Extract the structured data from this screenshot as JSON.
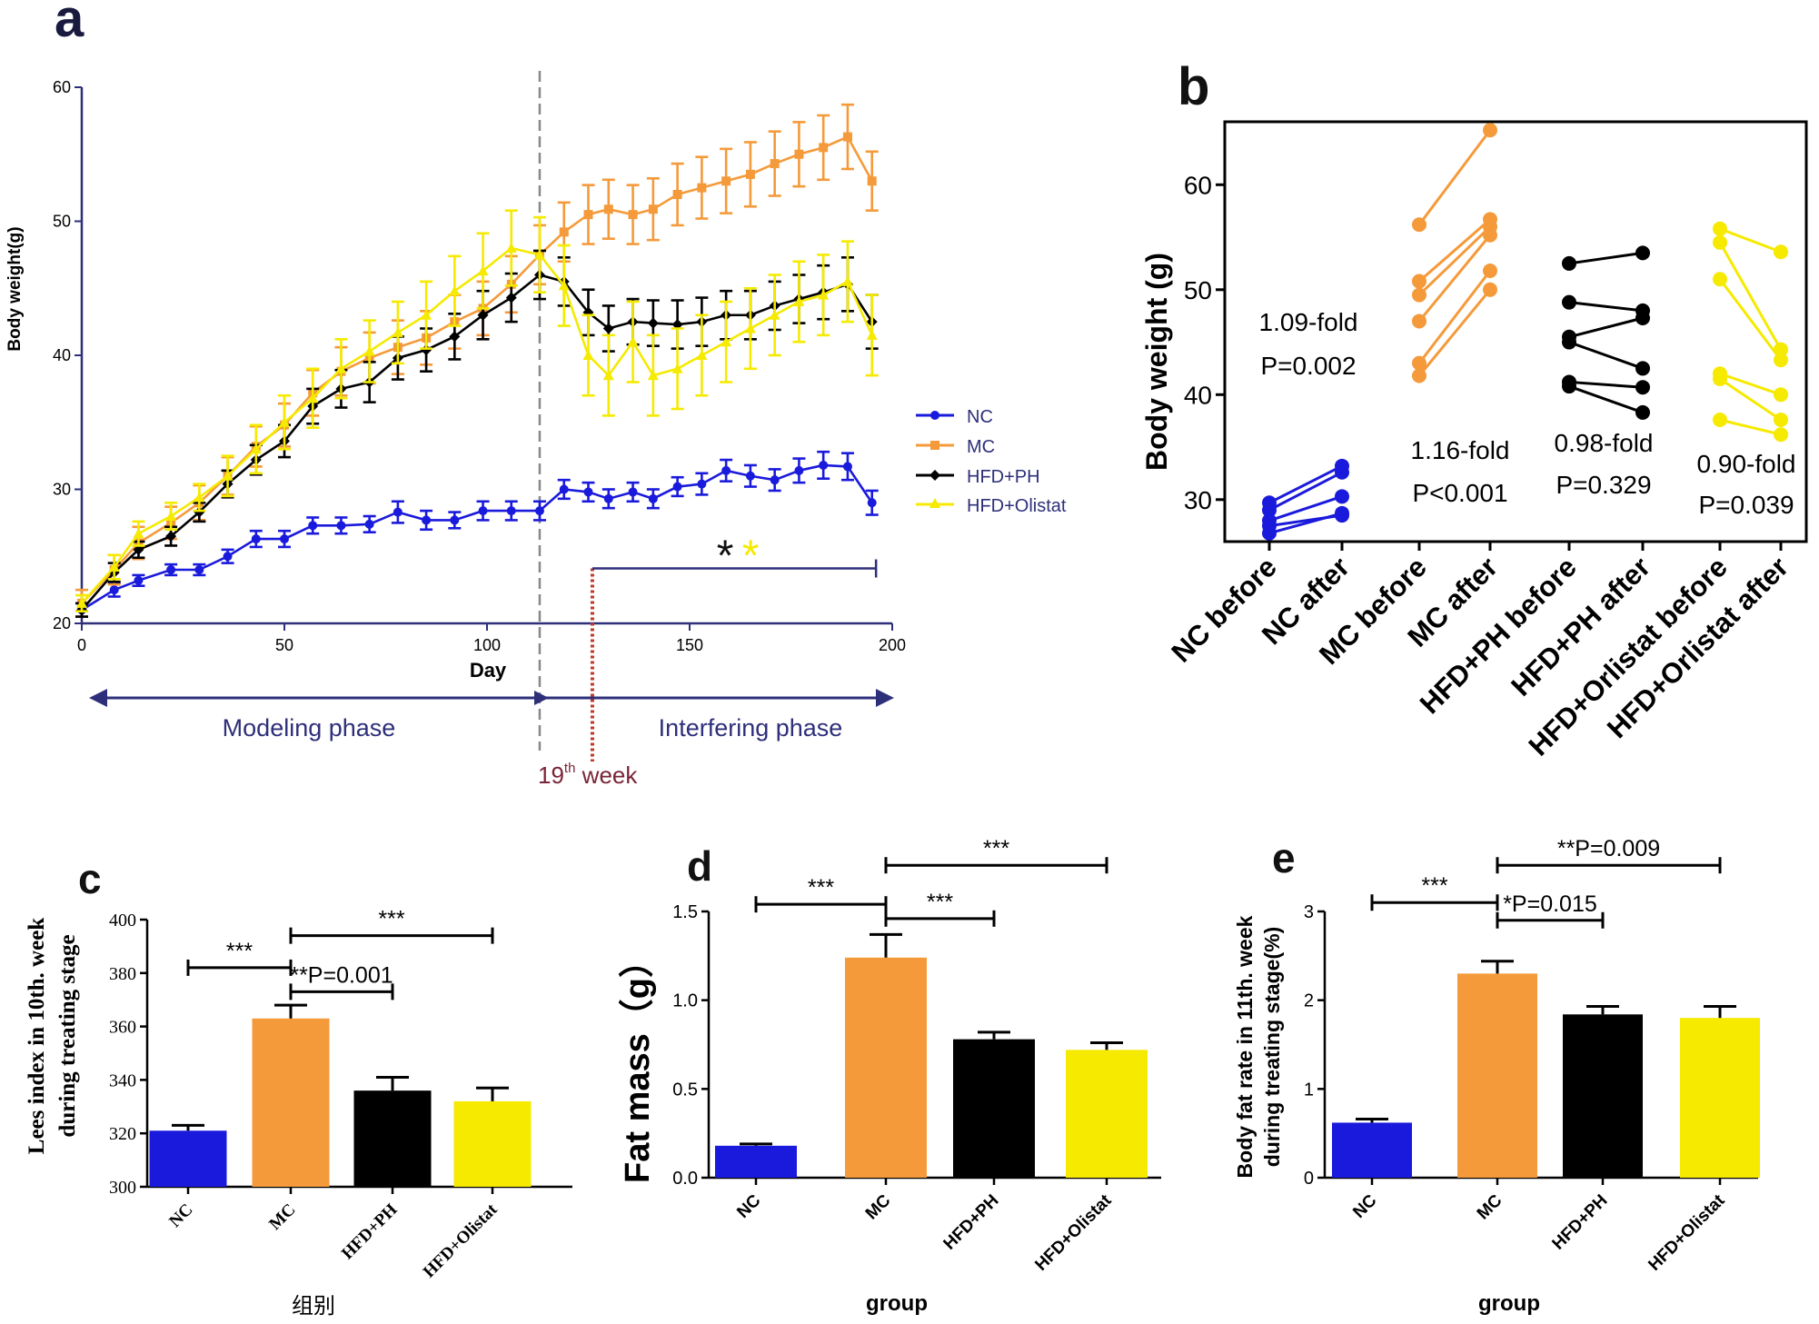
{
  "colors": {
    "NC": "#1a1adc",
    "MC": "#f59a3a",
    "PH": "#000000",
    "OL": "#f5ea00",
    "axisNavy": "#2e2f7a",
    "dashedLine": "#888888",
    "dotted": "#c0392b",
    "weekText": "#7a2438"
  },
  "chart_data": [
    {
      "panel": "a",
      "type": "line",
      "label": "a",
      "xlabel": "Day",
      "ylabel": "Body weight(g)",
      "xlim": [
        0,
        200
      ],
      "ylim": [
        20,
        60
      ],
      "xticks": [
        0,
        50,
        100,
        150,
        200
      ],
      "yticks": [
        20,
        30,
        40,
        50,
        60
      ],
      "series": [
        {
          "name": "NC",
          "color": "#1a1adc",
          "marker": "circle",
          "x": [
            0,
            8,
            14,
            22,
            29,
            36,
            43,
            50,
            57,
            64,
            71,
            78,
            85,
            92,
            99,
            106,
            113,
            119,
            125,
            130,
            136,
            141,
            147,
            153,
            159,
            165,
            171,
            177,
            183,
            189,
            195
          ],
          "y": [
            21,
            22.5,
            23.2,
            24,
            24,
            25,
            26.3,
            26.3,
            27.3,
            27.3,
            27.4,
            28.3,
            27.7,
            27.7,
            28.4,
            28.4,
            28.4,
            30,
            29.8,
            29.3,
            29.8,
            29.3,
            30.2,
            30.4,
            31.4,
            31,
            30.7,
            31.4,
            31.8,
            31.7,
            29
          ],
          "err": [
            0.5,
            0.5,
            0.4,
            0.4,
            0.4,
            0.5,
            0.6,
            0.6,
            0.6,
            0.6,
            0.6,
            0.8,
            0.7,
            0.6,
            0.7,
            0.7,
            0.7,
            0.7,
            0.7,
            0.7,
            0.7,
            0.7,
            0.7,
            0.8,
            0.8,
            0.8,
            0.8,
            0.9,
            1,
            1,
            0.9
          ]
        },
        {
          "name": "MC",
          "color": "#f59a3a",
          "marker": "square",
          "x": [
            0,
            8,
            14,
            22,
            29,
            36,
            43,
            50,
            57,
            64,
            71,
            78,
            85,
            92,
            99,
            106,
            113,
            119,
            125,
            130,
            136,
            141,
            147,
            153,
            159,
            165,
            171,
            177,
            183,
            189,
            195
          ],
          "y": [
            21.5,
            24,
            26,
            27.5,
            29,
            31,
            33.2,
            34.8,
            37.2,
            38.8,
            39.8,
            40.6,
            41.3,
            42.5,
            43.5,
            45.3,
            47.5,
            49.2,
            50.5,
            50.9,
            50.5,
            50.9,
            52,
            52.5,
            53,
            53.5,
            54.3,
            55,
            55.5,
            56.3,
            53
          ],
          "err": [
            1,
            1.1,
            1.2,
            1.2,
            1.3,
            1.4,
            1.5,
            1.6,
            1.7,
            1.8,
            1.9,
            2,
            2,
            2,
            2,
            2.1,
            2.2,
            2.2,
            2.2,
            2.2,
            2.2,
            2.3,
            2.3,
            2.3,
            2.4,
            2.4,
            2.4,
            2.4,
            2.4,
            2.4,
            2.2
          ]
        },
        {
          "name": "HFD+PH",
          "color": "#000000",
          "marker": "diamond",
          "x": [
            0,
            8,
            14,
            22,
            29,
            36,
            43,
            50,
            57,
            64,
            71,
            78,
            85,
            92,
            99,
            106,
            113,
            119,
            125,
            130,
            136,
            141,
            147,
            153,
            159,
            165,
            171,
            177,
            183,
            189,
            195
          ],
          "y": [
            21,
            23.8,
            25.5,
            26.5,
            28.3,
            30.4,
            32.2,
            33.6,
            36.2,
            37.5,
            38,
            39.8,
            40.4,
            41.4,
            43,
            44.3,
            46,
            45.5,
            43.2,
            42,
            42.5,
            42.4,
            42.3,
            42.5,
            43,
            43,
            43.7,
            44.2,
            44.7,
            45.3,
            42.5
          ],
          "err": [
            0.5,
            0.7,
            0.6,
            0.7,
            0.7,
            1,
            1.1,
            1.2,
            1.3,
            1.4,
            1.5,
            1.6,
            1.6,
            1.7,
            1.8,
            1.8,
            1.8,
            1.8,
            1.7,
            1.7,
            1.7,
            1.7,
            1.8,
            1.8,
            1.8,
            1.8,
            1.8,
            1.8,
            2,
            2,
            2
          ]
        },
        {
          "name": "HFD+Olistat",
          "color": "#f5ea00",
          "marker": "triangle",
          "x": [
            0,
            8,
            14,
            22,
            29,
            36,
            43,
            50,
            57,
            64,
            71,
            78,
            85,
            92,
            99,
            106,
            113,
            119,
            125,
            130,
            136,
            141,
            147,
            153,
            159,
            165,
            171,
            177,
            183,
            189,
            195
          ],
          "y": [
            21.5,
            24.2,
            26.7,
            28,
            29.4,
            31,
            33,
            35,
            36.8,
            39,
            40.3,
            41.7,
            43,
            44.8,
            46.3,
            48,
            47.5,
            45.2,
            40,
            38.5,
            41,
            38.5,
            39,
            40,
            41,
            42,
            43,
            44,
            44.5,
            45.5,
            41.5
          ],
          "err": [
            0.6,
            0.9,
            0.9,
            1,
            1,
            1.5,
            1.8,
            2,
            2.2,
            2.2,
            2.3,
            2.3,
            2.5,
            2.6,
            2.8,
            2.8,
            2.8,
            3,
            3,
            3,
            3,
            3,
            3,
            3,
            3,
            3,
            3,
            3,
            3,
            3,
            3
          ]
        }
      ],
      "annotations": {
        "phase_left": "Modeling phase",
        "phase_right": "Interfering phase",
        "week_prefix": "19",
        "week_sup": "th",
        "week_suffix": " week",
        "star_black": "*",
        "star_yellow": "*",
        "divider_day": 113,
        "week_day": 126,
        "sig_from_day": 126,
        "sig_to_day": 196,
        "sig_y": 24.1
      }
    },
    {
      "panel": "b",
      "type": "scatter",
      "label": "b",
      "ylabel": "Body weight (g)",
      "ylim": [
        26,
        66
      ],
      "yticks": [
        30,
        40,
        50,
        60
      ],
      "categories": [
        "NC before",
        "NC after",
        "MC before",
        "MC after",
        "HFD+PH before",
        "HFD+PH after",
        "HFD+Orlistat before",
        "HFD+Orlistat after"
      ],
      "groups": [
        {
          "name": "NC",
          "color": "#1a1adc",
          "before": [
            29.7,
            29,
            28,
            27.5,
            26.8
          ],
          "after": [
            33.2,
            32.6,
            30.3,
            28.5,
            28.7
          ],
          "fold": "1.09-fold",
          "p": "P=0.002"
        },
        {
          "name": "MC",
          "color": "#f59a3a",
          "before": [
            56.2,
            50.8,
            49.5,
            47,
            43,
            41.8
          ],
          "after": [
            65.2,
            56.7,
            56,
            55.2,
            51.8,
            50
          ],
          "fold": "1.16-fold",
          "p": "P<0.001"
        },
        {
          "name": "HFD+PH",
          "color": "#000000",
          "before": [
            52.5,
            48.8,
            45.5,
            45,
            41.2,
            40.8
          ],
          "after": [
            53.5,
            48,
            47.3,
            42.5,
            40.7,
            38.3
          ],
          "fold": "0.98-fold",
          "p": "P=0.329"
        },
        {
          "name": "HFD+Orlistat",
          "color": "#f5ea00",
          "before": [
            55.8,
            54.5,
            51,
            42,
            41.5,
            37.6
          ],
          "after": [
            53.6,
            44.3,
            43.3,
            40,
            37.6,
            36.2
          ],
          "fold": "0.90-fold",
          "p": "P=0.039"
        }
      ]
    },
    {
      "panel": "c",
      "type": "bar",
      "label": "c",
      "ylabel_line1": "Lees index in 10th. week",
      "ylabel_line2": "during treating stage",
      "xlabel": "组别",
      "ylim": [
        300,
        400
      ],
      "yticks": [
        300,
        320,
        340,
        360,
        380,
        400
      ],
      "categories": [
        "NC",
        "MC",
        "HFD+PH",
        "HFD+Olistat"
      ],
      "values": [
        321,
        363,
        336,
        332
      ],
      "errors": [
        2,
        5,
        5,
        5
      ],
      "colors": [
        "#1a1adc",
        "#f59a3a",
        "#000000",
        "#f5ea00"
      ],
      "brackets": [
        {
          "from": 0,
          "to": 1,
          "y": 382,
          "label": "***"
        },
        {
          "from": 1,
          "to": 2,
          "y": 373,
          "label": "**P=0.001"
        },
        {
          "from": 1,
          "to": 3,
          "y": 394,
          "label": "***"
        }
      ]
    },
    {
      "panel": "d",
      "type": "bar",
      "label": "d",
      "ylabel": "Fat mass（g）",
      "xlabel": "group",
      "ylim": [
        0,
        1.5
      ],
      "yticks": [
        0.0,
        0.5,
        1.0,
        1.5
      ],
      "ytick_labels": [
        "0.0",
        "0.5",
        "1.0",
        "1.5"
      ],
      "categories": [
        "NC",
        "MC",
        "HFD+PH",
        "HFD+Olistat"
      ],
      "values": [
        0.18,
        1.24,
        0.78,
        0.72
      ],
      "errors": [
        0.01,
        0.13,
        0.04,
        0.04
      ],
      "colors": [
        "#1a1adc",
        "#f59a3a",
        "#000000",
        "#f5ea00"
      ],
      "brackets": [
        {
          "from": 0,
          "to": 1,
          "y": 1.54,
          "label": "***"
        },
        {
          "from": 1,
          "to": 2,
          "y": 1.46,
          "label": "***"
        },
        {
          "from": 1,
          "to": 3,
          "y": 1.76,
          "label": "***"
        }
      ]
    },
    {
      "panel": "e",
      "type": "bar",
      "label": "e",
      "ylabel_line1": "Body fat rate in 11th. week",
      "ylabel_line2": "during treating stage(%)",
      "xlabel": "group",
      "ylim": [
        0,
        3
      ],
      "yticks": [
        0,
        1,
        2,
        3
      ],
      "categories": [
        "NC",
        "MC",
        "HFD+PH",
        "HFD+Olistat"
      ],
      "values": [
        0.62,
        2.3,
        1.84,
        1.8
      ],
      "errors": [
        0.04,
        0.14,
        0.09,
        0.13
      ],
      "colors": [
        "#1a1adc",
        "#f59a3a",
        "#000000",
        "#f5ea00"
      ],
      "brackets": [
        {
          "from": 0,
          "to": 1,
          "y": 3.1,
          "label": "***"
        },
        {
          "from": 1,
          "to": 2,
          "y": 2.9,
          "label": "*P=0.015"
        },
        {
          "from": 1,
          "to": 3,
          "y": 3.52,
          "label": "**P=0.009"
        }
      ]
    }
  ]
}
